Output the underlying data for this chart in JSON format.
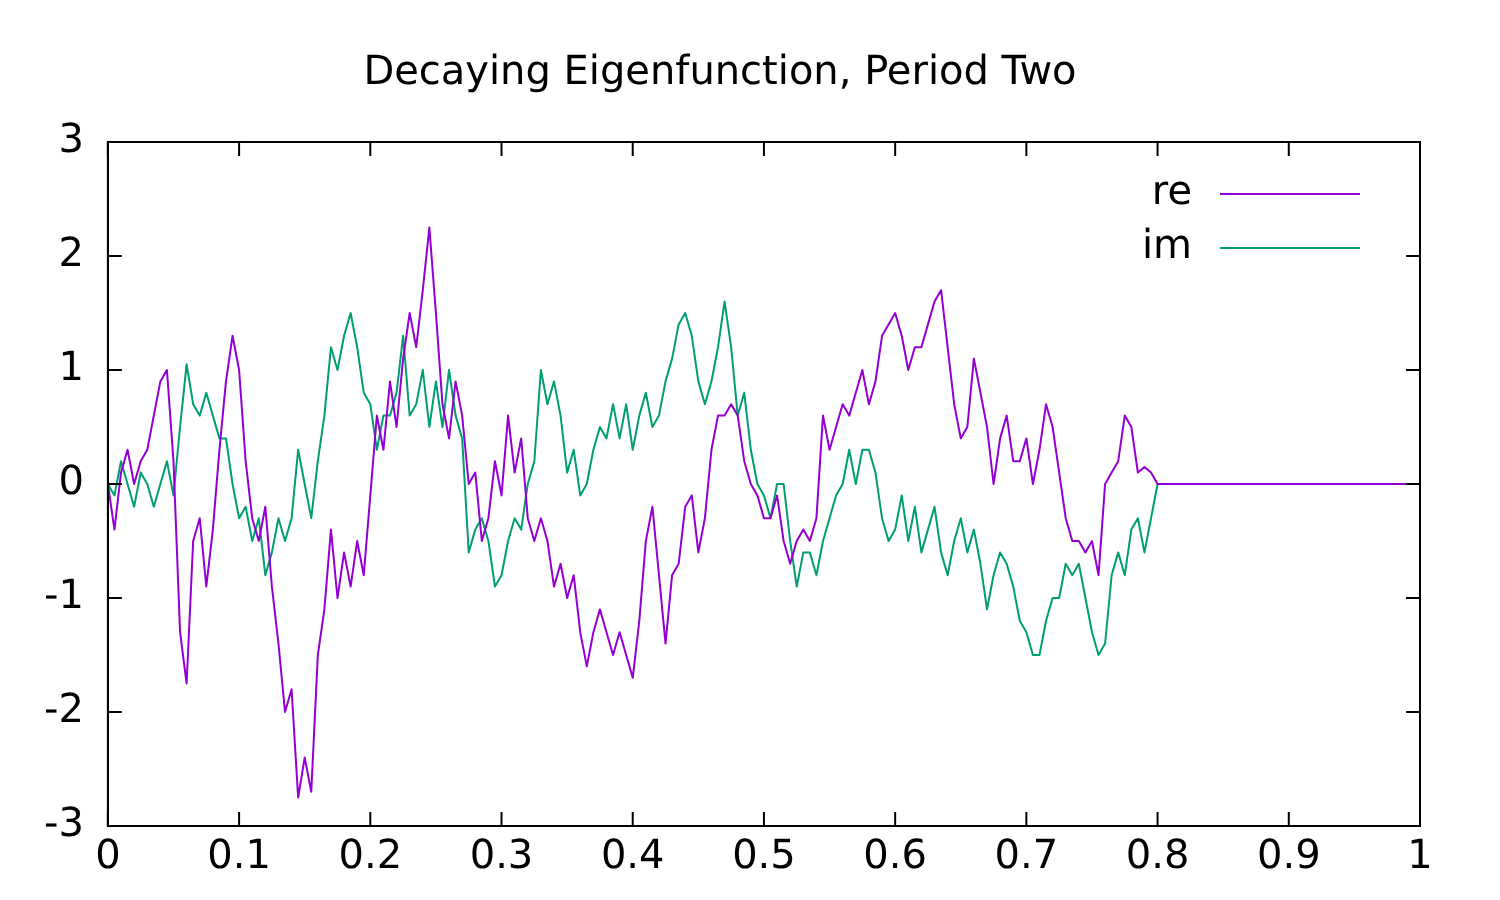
{
  "chart_data": {
    "type": "line",
    "title": "Decaying Eigenfunction, Period Two",
    "x": [
      0,
      0.005,
      0.01,
      0.015,
      0.02,
      0.025,
      0.03,
      0.035,
      0.04,
      0.045,
      0.05,
      0.055,
      0.06,
      0.065,
      0.07,
      0.075,
      0.08,
      0.085,
      0.09,
      0.095,
      0.1,
      0.105,
      0.11,
      0.115,
      0.12,
      0.125,
      0.13,
      0.135,
      0.14,
      0.145,
      0.15,
      0.155,
      0.16,
      0.165,
      0.17,
      0.175,
      0.18,
      0.185,
      0.19,
      0.195,
      0.2,
      0.205,
      0.21,
      0.215,
      0.22,
      0.225,
      0.23,
      0.235,
      0.24,
      0.245,
      0.25,
      0.255,
      0.26,
      0.265,
      0.27,
      0.275,
      0.28,
      0.285,
      0.29,
      0.295,
      0.3,
      0.305,
      0.31,
      0.315,
      0.32,
      0.325,
      0.33,
      0.335,
      0.34,
      0.345,
      0.35,
      0.355,
      0.36,
      0.365,
      0.37,
      0.375,
      0.38,
      0.385,
      0.39,
      0.395,
      0.4,
      0.405,
      0.41,
      0.415,
      0.42,
      0.425,
      0.43,
      0.435,
      0.44,
      0.445,
      0.45,
      0.455,
      0.46,
      0.465,
      0.47,
      0.475,
      0.48,
      0.485,
      0.49,
      0.495,
      0.5,
      0.505,
      0.51,
      0.515,
      0.52,
      0.525,
      0.53,
      0.535,
      0.54,
      0.545,
      0.55,
      0.555,
      0.56,
      0.565,
      0.57,
      0.575,
      0.58,
      0.585,
      0.59,
      0.595,
      0.6,
      0.605,
      0.61,
      0.615,
      0.62,
      0.625,
      0.63,
      0.635,
      0.64,
      0.645,
      0.65,
      0.655,
      0.66,
      0.665,
      0.67,
      0.675,
      0.68,
      0.685,
      0.69,
      0.695,
      0.7,
      0.705,
      0.71,
      0.715,
      0.72,
      0.725,
      0.73,
      0.735,
      0.74,
      0.745,
      0.75,
      0.755,
      0.76,
      0.765,
      0.77,
      0.775,
      0.78,
      0.785,
      0.79,
      0.795,
      0.8,
      1
    ],
    "series": [
      {
        "name": "re",
        "color": "#9400d3",
        "values": [
          0,
          -0.4,
          0.1,
          0.3,
          0,
          0.2,
          0.3,
          0.6,
          0.9,
          1,
          0.2,
          -1.3,
          -1.75,
          -0.5,
          -0.3,
          -0.9,
          -0.4,
          0.3,
          0.9,
          1.3,
          1,
          0.2,
          -0.3,
          -0.5,
          -0.2,
          -0.9,
          -1.4,
          -2,
          -1.8,
          -2.75,
          -2.4,
          -2.7,
          -1.5,
          -1.1,
          -0.4,
          -1,
          -0.6,
          -0.9,
          -0.5,
          -0.8,
          -0.1,
          0.6,
          0.3,
          0.9,
          0.5,
          1.1,
          1.5,
          1.2,
          1.7,
          2.25,
          1.5,
          0.7,
          0.4,
          0.9,
          0.6,
          0,
          0.1,
          -0.5,
          -0.3,
          0.2,
          -0.1,
          0.6,
          0.1,
          0.4,
          -0.3,
          -0.5,
          -0.3,
          -0.5,
          -0.9,
          -0.7,
          -1,
          -0.8,
          -1.3,
          -1.6,
          -1.3,
          -1.1,
          -1.3,
          -1.5,
          -1.3,
          -1.5,
          -1.7,
          -1.2,
          -0.5,
          -0.2,
          -0.8,
          -1.4,
          -0.8,
          -0.7,
          -0.2,
          -0.1,
          -0.6,
          -0.3,
          0.3,
          0.6,
          0.6,
          0.7,
          0.6,
          0.2,
          0,
          -0.1,
          -0.3,
          -0.3,
          -0.1,
          -0.5,
          -0.7,
          -0.5,
          -0.4,
          -0.5,
          -0.3,
          0.6,
          0.3,
          0.5,
          0.7,
          0.6,
          0.8,
          1,
          0.7,
          0.9,
          1.3,
          1.4,
          1.5,
          1.3,
          1,
          1.2,
          1.2,
          1.4,
          1.6,
          1.7,
          1.2,
          0.7,
          0.4,
          0.5,
          1.1,
          0.8,
          0.5,
          0,
          0.4,
          0.6,
          0.2,
          0.2,
          0.4,
          0,
          0.3,
          0.7,
          0.5,
          0.1,
          -0.3,
          -0.5,
          -0.5,
          -0.6,
          -0.5,
          -0.8,
          0,
          0.1,
          0.2,
          0.6,
          0.5,
          0.1,
          0.15,
          0.1,
          0,
          0
        ]
      },
      {
        "name": "im",
        "color": "#009e73",
        "values": [
          0,
          -0.1,
          0.2,
          0,
          -0.2,
          0.1,
          0,
          -0.2,
          0,
          0.2,
          -0.1,
          0.5,
          1.05,
          0.7,
          0.6,
          0.8,
          0.6,
          0.4,
          0.4,
          0,
          -0.3,
          -0.2,
          -0.5,
          -0.3,
          -0.8,
          -0.6,
          -0.3,
          -0.5,
          -0.3,
          0.3,
          0,
          -0.3,
          0.2,
          0.6,
          1.2,
          1,
          1.3,
          1.5,
          1.2,
          0.8,
          0.7,
          0.3,
          0.6,
          0.6,
          0.8,
          1.3,
          0.6,
          0.7,
          1,
          0.5,
          0.9,
          0.5,
          1,
          0.6,
          0.4,
          -0.6,
          -0.4,
          -0.3,
          -0.5,
          -0.9,
          -0.8,
          -0.5,
          -0.3,
          -0.4,
          0,
          0.2,
          1,
          0.7,
          0.9,
          0.6,
          0.1,
          0.3,
          -0.1,
          0,
          0.3,
          0.5,
          0.4,
          0.7,
          0.4,
          0.7,
          0.3,
          0.6,
          0.8,
          0.5,
          0.6,
          0.9,
          1.1,
          1.4,
          1.5,
          1.3,
          0.9,
          0.7,
          0.9,
          1.2,
          1.6,
          1.2,
          0.6,
          0.8,
          0.3,
          0,
          -0.1,
          -0.3,
          0,
          0,
          -0.5,
          -0.9,
          -0.6,
          -0.6,
          -0.8,
          -0.5,
          -0.3,
          -0.1,
          0,
          0.3,
          0,
          0.3,
          0.3,
          0.1,
          -0.3,
          -0.5,
          -0.4,
          -0.1,
          -0.5,
          -0.2,
          -0.6,
          -0.4,
          -0.2,
          -0.6,
          -0.8,
          -0.5,
          -0.3,
          -0.6,
          -0.4,
          -0.7,
          -1.1,
          -0.8,
          -0.6,
          -0.7,
          -0.9,
          -1.2,
          -1.3,
          -1.5,
          -1.5,
          -1.2,
          -1,
          -1,
          -0.7,
          -0.8,
          -0.7,
          -1,
          -1.3,
          -1.5,
          -1.4,
          -0.8,
          -0.6,
          -0.8,
          -0.4,
          -0.3,
          -0.6,
          -0.3,
          0,
          0
        ]
      }
    ],
    "xlim": [
      0,
      1
    ],
    "xticks": [
      0,
      0.1,
      0.2,
      0.3,
      0.4,
      0.5,
      0.6,
      0.7,
      0.8,
      0.9,
      1
    ],
    "ylim": [
      -3,
      3
    ],
    "yticks": [
      -3,
      -2,
      -1,
      0,
      1,
      2,
      3
    ],
    "legend": "top right"
  }
}
